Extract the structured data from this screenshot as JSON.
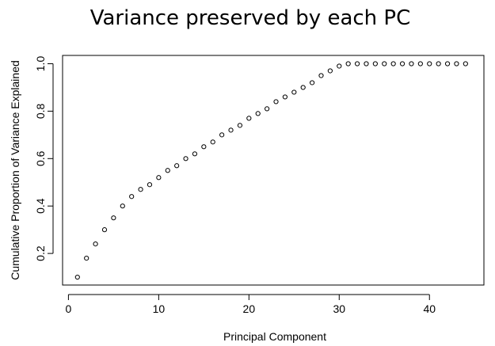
{
  "chart_data": {
    "type": "scatter",
    "title": "Variance preserved by each PC",
    "xlabel": "Principal Component",
    "ylabel": "Cumulative Proportion of Variance Explained",
    "xlim": [
      0,
      45
    ],
    "ylim": [
      0.1,
      1.0
    ],
    "xticks": [
      0,
      10,
      20,
      30,
      40
    ],
    "yticks": [
      0.2,
      0.4,
      0.6,
      0.8,
      1.0
    ],
    "xtick_labels": [
      "0",
      "10",
      "20",
      "30",
      "40"
    ],
    "ytick_labels": [
      "0.2",
      "0.4",
      "0.6",
      "0.8",
      "1.0"
    ],
    "grid": false,
    "series": [
      {
        "x": [
          1,
          2,
          3,
          4,
          5,
          6,
          7,
          8,
          9,
          10,
          11,
          12,
          13,
          14,
          15,
          16,
          17,
          18,
          19,
          20,
          21,
          22,
          23,
          24,
          25,
          26,
          27,
          28,
          29,
          30,
          31,
          32,
          33,
          34,
          35,
          36,
          37,
          38,
          39,
          40,
          41,
          42,
          43,
          44
        ],
        "values": [
          0.1,
          0.18,
          0.24,
          0.3,
          0.35,
          0.4,
          0.44,
          0.47,
          0.49,
          0.52,
          0.55,
          0.57,
          0.6,
          0.62,
          0.65,
          0.67,
          0.7,
          0.72,
          0.74,
          0.77,
          0.79,
          0.81,
          0.84,
          0.86,
          0.88,
          0.9,
          0.92,
          0.95,
          0.97,
          0.99,
          1.0,
          1.0,
          1.0,
          1.0,
          1.0,
          1.0,
          1.0,
          1.0,
          1.0,
          1.0,
          1.0,
          1.0,
          1.0,
          1.0
        ]
      }
    ]
  }
}
